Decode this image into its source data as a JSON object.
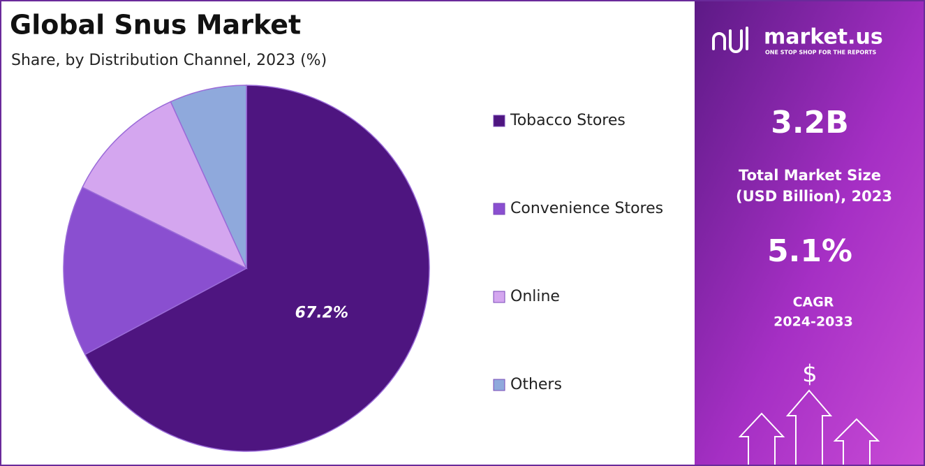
{
  "chart_data": {
    "type": "pie",
    "title": "Global Snus Market",
    "subtitle": "Share, by Distribution Channel, 2023 (%)",
    "categories": [
      "Tobacco Stores",
      "Convenience Stores",
      "Online",
      "Others"
    ],
    "values": [
      67.2,
      15.1,
      10.9,
      6.8
    ],
    "value_labels": [
      "67.2%",
      null,
      null,
      null
    ],
    "colors": [
      "#4e1580",
      "#8a4fd0",
      "#d4a6ef",
      "#8fa9dc"
    ]
  },
  "panel": {
    "brand": "market.us",
    "tagline": "ONE STOP SHOP FOR THE REPORTS",
    "market_size": "3.2B",
    "market_size_label_1": "Total Market Size",
    "market_size_label_2": "(USD Billion), 2023",
    "cagr": "5.1%",
    "cagr_label_1": "CAGR",
    "cagr_label_2": "2024-2033",
    "icon": "$"
  }
}
